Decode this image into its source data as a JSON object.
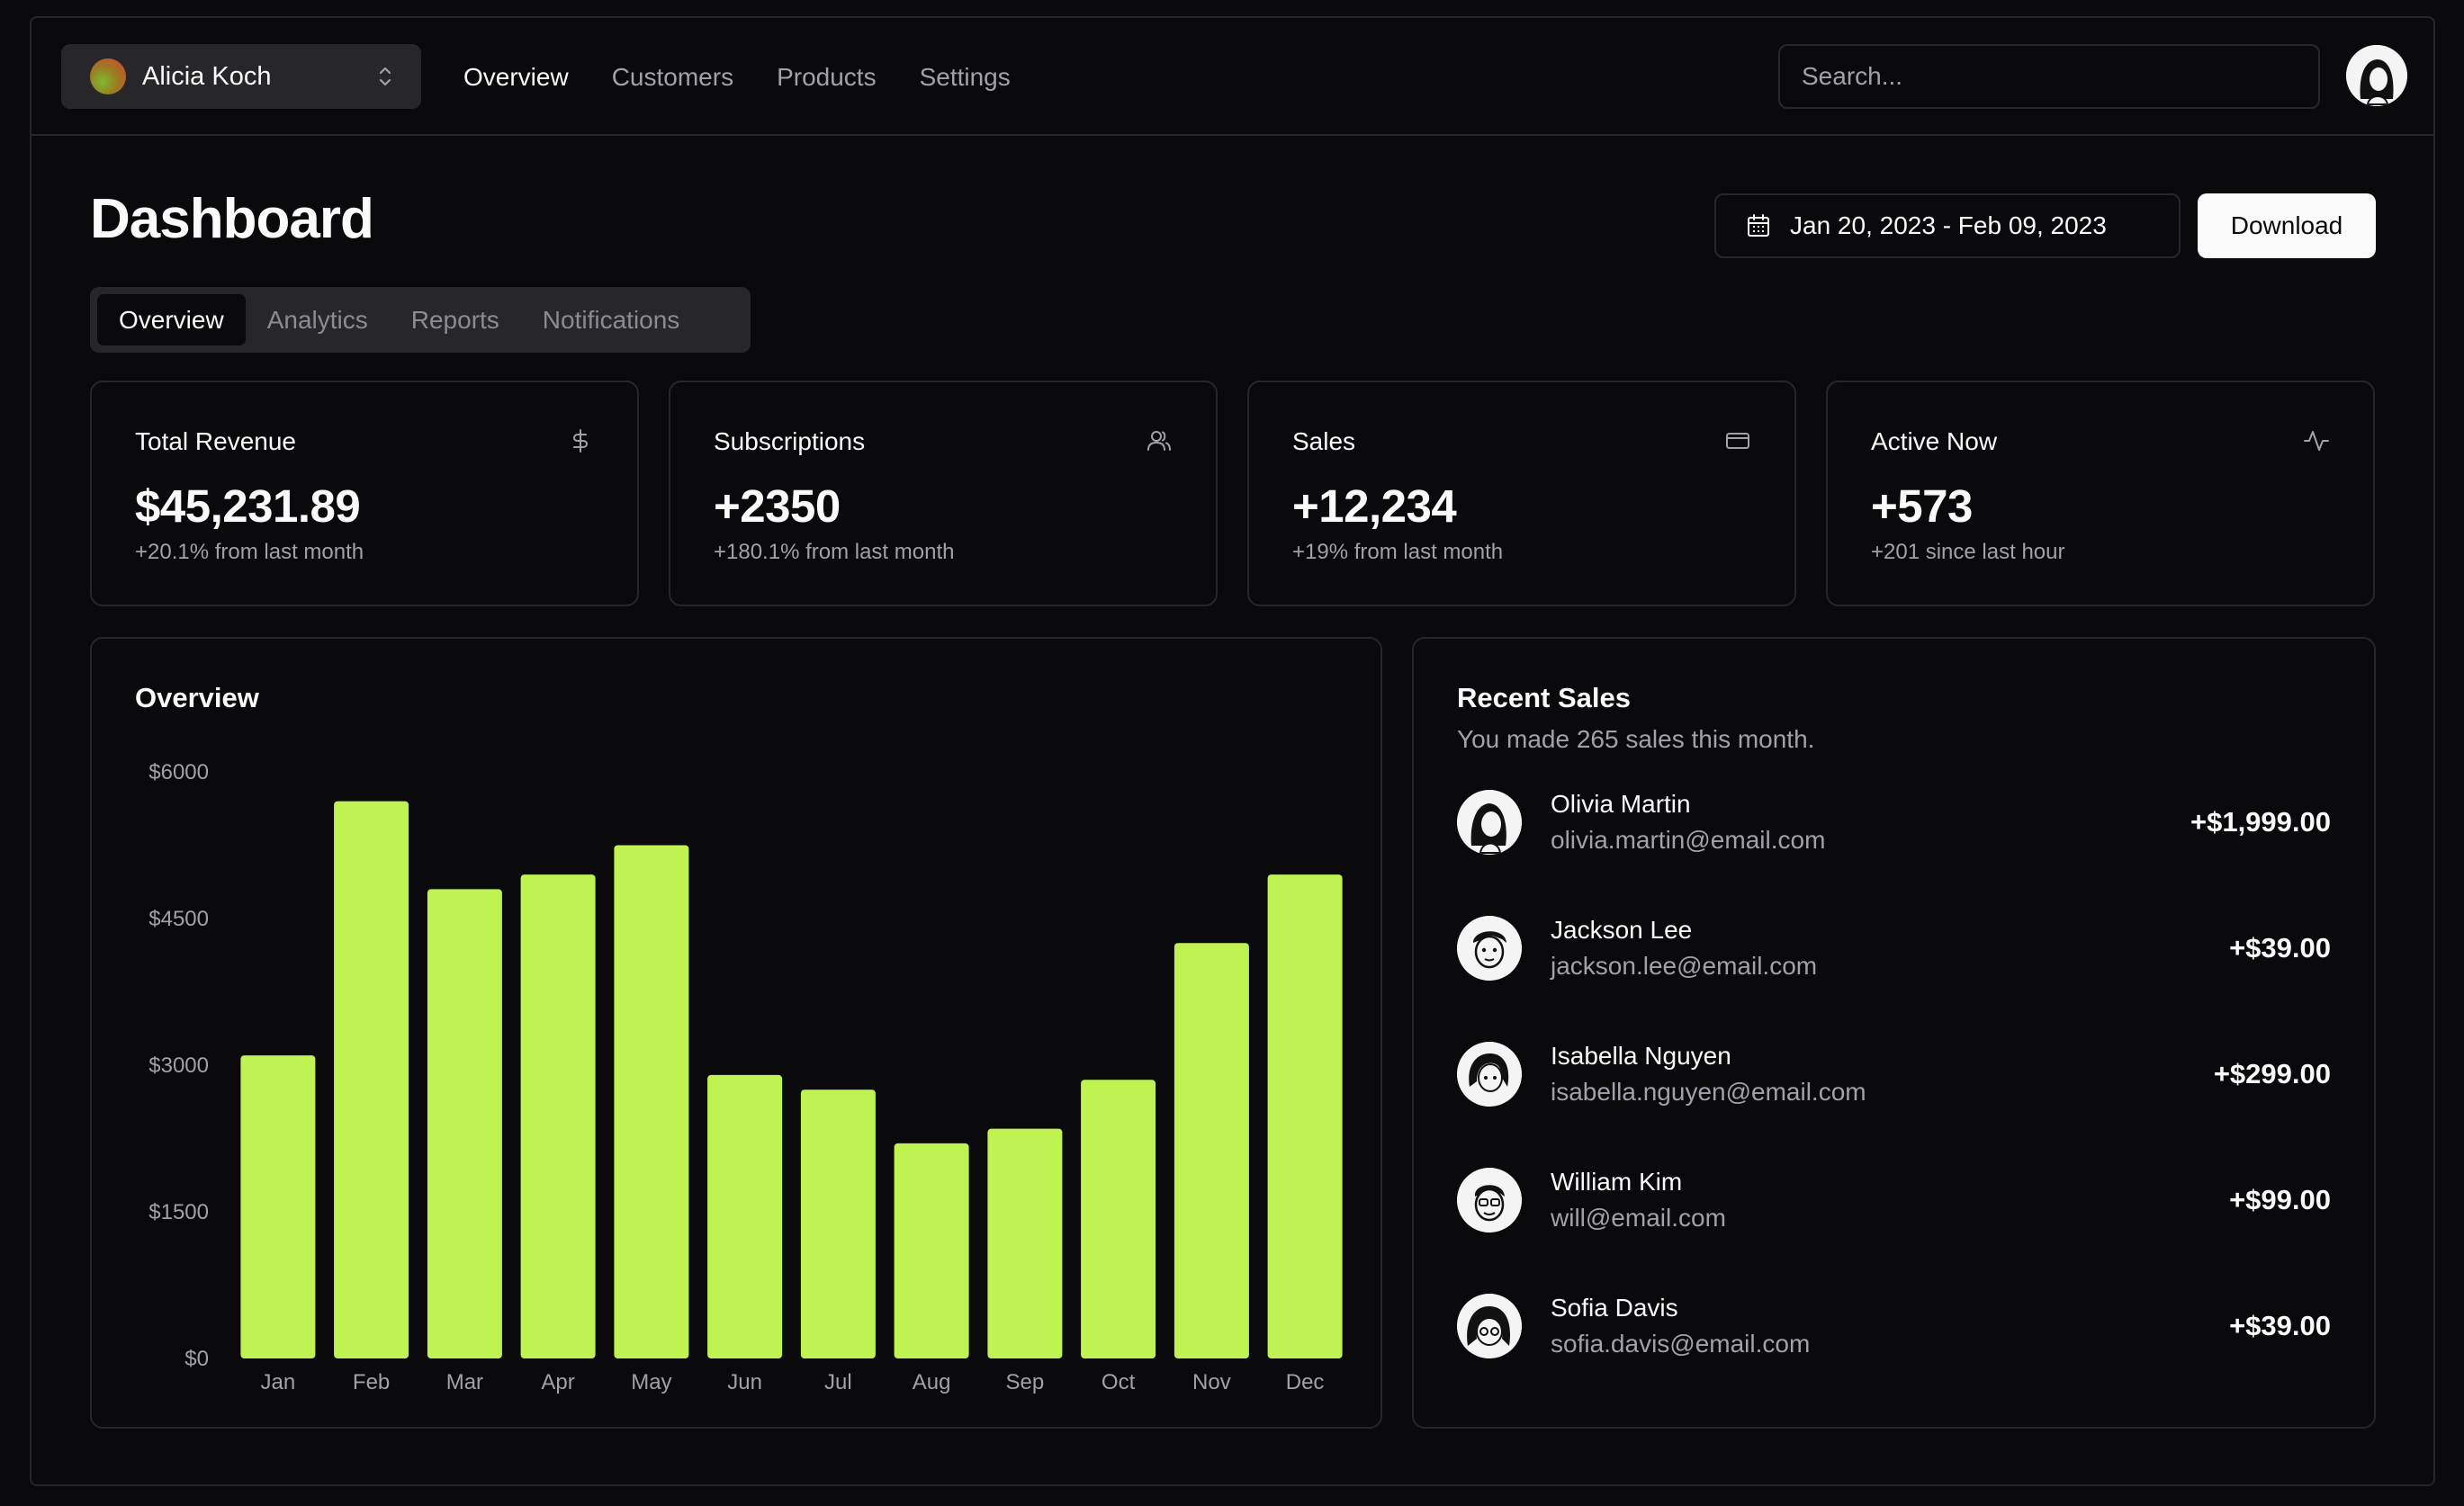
{
  "team": {
    "name": "Alicia Koch"
  },
  "nav": {
    "items": [
      {
        "label": "Overview"
      },
      {
        "label": "Customers"
      },
      {
        "label": "Products"
      },
      {
        "label": "Settings"
      }
    ]
  },
  "search": {
    "placeholder": "Search..."
  },
  "header": {
    "title": "Dashboard",
    "date_range": "Jan 20, 2023 - Feb 09, 2023",
    "download_label": "Download"
  },
  "tabs": [
    {
      "label": "Overview"
    },
    {
      "label": "Analytics"
    },
    {
      "label": "Reports"
    },
    {
      "label": "Notifications"
    }
  ],
  "stats": [
    {
      "title": "Total Revenue",
      "value": "$45,231.89",
      "sub": "+20.1% from last month",
      "icon": "dollar-icon"
    },
    {
      "title": "Subscriptions",
      "value": "+2350",
      "sub": "+180.1% from last month",
      "icon": "users-icon"
    },
    {
      "title": "Sales",
      "value": "+12,234",
      "sub": "+19% from last month",
      "icon": "credit-card-icon"
    },
    {
      "title": "Active Now",
      "value": "+573",
      "sub": "+201 since last hour",
      "icon": "activity-icon"
    }
  ],
  "overview": {
    "title": "Overview"
  },
  "chart_data": {
    "type": "bar",
    "title": "Overview",
    "categories": [
      "Jan",
      "Feb",
      "Mar",
      "Apr",
      "May",
      "Jun",
      "Jul",
      "Aug",
      "Sep",
      "Oct",
      "Nov",
      "Dec"
    ],
    "values": [
      3100,
      5700,
      4800,
      4950,
      5250,
      2900,
      2750,
      2200,
      2350,
      2850,
      4250,
      4950
    ],
    "yticks": [
      "$0",
      "$1500",
      "$3000",
      "$4500",
      "$6000"
    ],
    "ylim": [
      0,
      6000
    ],
    "bar_color": "#bef352",
    "grid": false
  },
  "recent_sales": {
    "title": "Recent Sales",
    "subtitle": "You made 265 sales this month.",
    "items": [
      {
        "name": "Olivia Martin",
        "email": "olivia.martin@email.com",
        "amount": "+$1,999.00"
      },
      {
        "name": "Jackson Lee",
        "email": "jackson.lee@email.com",
        "amount": "+$39.00"
      },
      {
        "name": "Isabella Nguyen",
        "email": "isabella.nguyen@email.com",
        "amount": "+$299.00"
      },
      {
        "name": "William Kim",
        "email": "will@email.com",
        "amount": "+$99.00"
      },
      {
        "name": "Sofia Davis",
        "email": "sofia.davis@email.com",
        "amount": "+$39.00"
      }
    ]
  },
  "colors": {
    "background": "#0a0a0c",
    "border": "#27272a",
    "accent": "#bef352",
    "muted": "#a1a1aa"
  }
}
